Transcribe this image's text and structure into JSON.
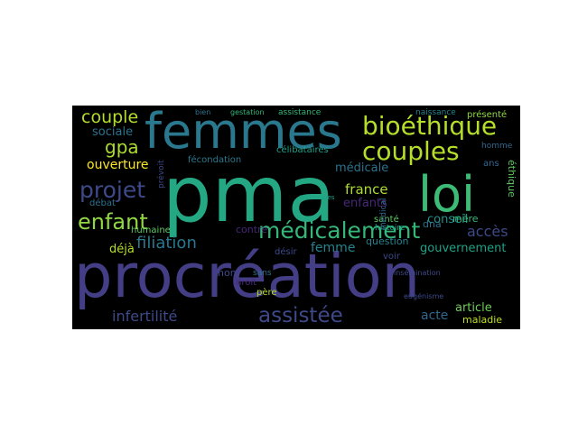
{
  "wordcloud": {
    "words": [
      {
        "text": "pma",
        "color": "#23a883"
      },
      {
        "text": "procréation",
        "color": "#433e85"
      },
      {
        "text": "femmes",
        "color": "#2a788e"
      },
      {
        "text": "loi",
        "color": "#3bbb75"
      },
      {
        "text": "bioéthique",
        "color": "#b5de2b"
      },
      {
        "text": "couples",
        "color": "#b5de2b"
      },
      {
        "text": "médicalement",
        "color": "#35b779"
      },
      {
        "text": "assistée",
        "color": "#3e4989"
      },
      {
        "text": "projet",
        "color": "#3e4989"
      },
      {
        "text": "enfant",
        "color": "#90d743"
      },
      {
        "text": "couple",
        "color": "#b5de2b"
      },
      {
        "text": "gpa",
        "color": "#addc30"
      },
      {
        "text": "filiation",
        "color": "#2a788e"
      },
      {
        "text": "infertilité",
        "color": "#3e4989"
      },
      {
        "text": "france",
        "color": "#addc30"
      },
      {
        "text": "enfants",
        "color": "#482878"
      },
      {
        "text": "médicale",
        "color": "#2c728e"
      },
      {
        "text": "accès",
        "color": "#3e4989"
      },
      {
        "text": "femme",
        "color": "#26828e"
      },
      {
        "text": "gouvernement",
        "color": "#1fa187"
      },
      {
        "text": "ouverture",
        "color": "#fde725"
      },
      {
        "text": "sociale",
        "color": "#2c728e"
      },
      {
        "text": "conseil",
        "color": "#21918c"
      },
      {
        "text": "acte",
        "color": "#31688e"
      },
      {
        "text": "article",
        "color": "#6ece58"
      },
      {
        "text": "déjà",
        "color": "#b5de2b"
      },
      {
        "text": "humaine",
        "color": "#5ec962"
      },
      {
        "text": "débat",
        "color": "#2c728e"
      },
      {
        "text": "contre",
        "color": "#482878"
      },
      {
        "text": "désir",
        "color": "#3e4989"
      },
      {
        "text": "question",
        "color": "#26828e"
      },
      {
        "text": "santé",
        "color": "#5ec962"
      },
      {
        "text": "mère",
        "color": "#35b779"
      },
      {
        "text": "maladie",
        "color": "#c2df23"
      },
      {
        "text": "éthique",
        "color": "#5ec962"
      },
      {
        "text": "ans",
        "color": "#31688e"
      },
      {
        "text": "homme",
        "color": "#31688e"
      },
      {
        "text": "présenté",
        "color": "#90d743"
      },
      {
        "text": "célibataires",
        "color": "#1fa187"
      },
      {
        "text": "fécondation",
        "color": "#2a788e"
      },
      {
        "text": "assistance",
        "color": "#35b779"
      },
      {
        "text": "naissance",
        "color": "#26828e"
      },
      {
        "text": "gestation",
        "color": "#35b779"
      },
      {
        "text": "histoire",
        "color": "#1fa187"
      },
      {
        "text": "eugénisme",
        "color": "#3e4989"
      },
      {
        "text": "non",
        "color": "#3e4989"
      },
      {
        "text": "droit",
        "color": "#482878"
      },
      {
        "text": "père",
        "color": "#b5de2b"
      },
      {
        "text": "voir",
        "color": "#3e4989"
      },
      {
        "text": "bien",
        "color": "#2c728e"
      },
      {
        "text": "prévoit",
        "color": "#3e4989"
      },
      {
        "text": "médical",
        "color": "#31688e"
      },
      {
        "text": "sans",
        "color": "#2c728e"
      },
      {
        "text": "insémination",
        "color": "#3e4989"
      },
      {
        "text": "dna",
        "color": "#2c728e"
      },
      {
        "text": "techniques",
        "color": "#1fa187"
      }
    ]
  }
}
